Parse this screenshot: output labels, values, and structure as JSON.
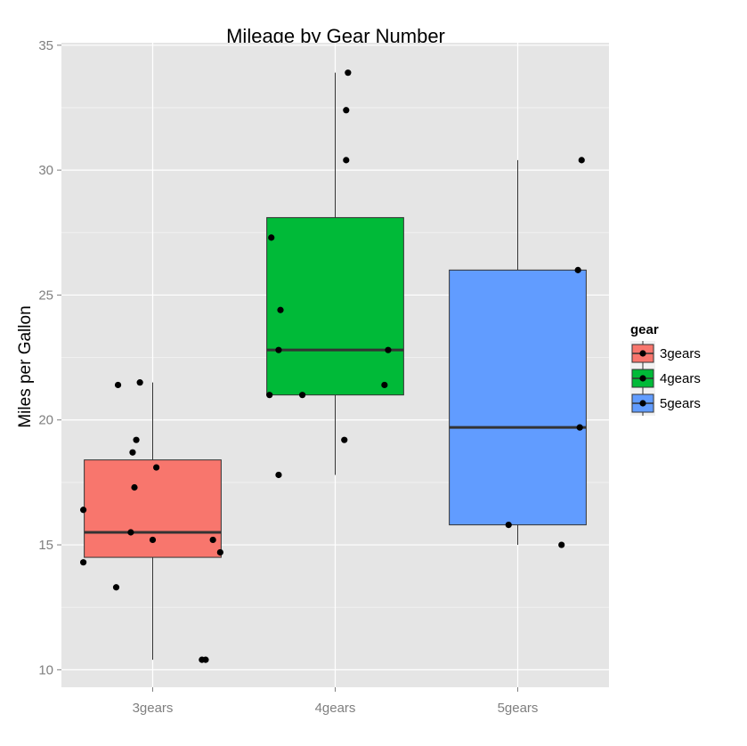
{
  "chart_data": {
    "type": "box",
    "title": "Mileage by Gear Number",
    "xlabel": "",
    "ylabel": "Miles per Gallon",
    "ylim": [
      9.3,
      35.1
    ],
    "yticks": [
      10,
      15,
      20,
      25,
      30,
      35
    ],
    "grid": true,
    "legend_position": "right",
    "legend_title": "gear",
    "categories": [
      "3gears",
      "4gears",
      "5gears"
    ],
    "series": [
      {
        "name": "3gears",
        "color": "#F8766D",
        "box": {
          "min": 10.4,
          "q1": 14.5,
          "median": 15.5,
          "q3": 18.4,
          "max": 21.5
        },
        "points": [
          {
            "x": -0.38,
            "y": 14.3
          },
          {
            "x": -0.38,
            "y": 16.4
          },
          {
            "x": -0.19,
            "y": 21.4
          },
          {
            "x": -0.2,
            "y": 13.3
          },
          {
            "x": -0.07,
            "y": 21.5
          },
          {
            "x": -0.11,
            "y": 18.7
          },
          {
            "x": -0.09,
            "y": 19.2
          },
          {
            "x": -0.1,
            "y": 17.3
          },
          {
            "x": -0.12,
            "y": 15.5
          },
          {
            "x": 0.02,
            "y": 18.1
          },
          {
            "x": 0.0,
            "y": 15.2
          },
          {
            "x": 0.33,
            "y": 15.2
          },
          {
            "x": 0.37,
            "y": 14.7
          },
          {
            "x": 0.27,
            "y": 10.4
          },
          {
            "x": 0.29,
            "y": 10.4
          }
        ]
      },
      {
        "name": "4gears",
        "color": "#00BA38",
        "box": {
          "min": 17.8,
          "q1": 21.0,
          "median": 22.8,
          "q3": 28.1,
          "max": 33.9
        },
        "points": [
          {
            "x": 0.07,
            "y": 33.9
          },
          {
            "x": 0.06,
            "y": 32.4
          },
          {
            "x": 0.06,
            "y": 30.4
          },
          {
            "x": -0.35,
            "y": 27.3
          },
          {
            "x": -0.3,
            "y": 24.4
          },
          {
            "x": -0.31,
            "y": 22.8
          },
          {
            "x": 0.29,
            "y": 22.8
          },
          {
            "x": -0.36,
            "y": 21.0
          },
          {
            "x": -0.18,
            "y": 21.0
          },
          {
            "x": 0.27,
            "y": 21.4
          },
          {
            "x": 0.05,
            "y": 19.2
          },
          {
            "x": -0.31,
            "y": 17.8
          }
        ]
      },
      {
        "name": "5gears",
        "color": "#619CFF",
        "box": {
          "min": 15.0,
          "q1": 15.8,
          "median": 19.7,
          "q3": 26.0,
          "max": 30.4
        },
        "points": [
          {
            "x": 0.35,
            "y": 30.4
          },
          {
            "x": 0.33,
            "y": 26.0
          },
          {
            "x": 0.34,
            "y": 19.7
          },
          {
            "x": -0.05,
            "y": 15.8
          },
          {
            "x": 0.24,
            "y": 15.0
          }
        ]
      }
    ]
  }
}
